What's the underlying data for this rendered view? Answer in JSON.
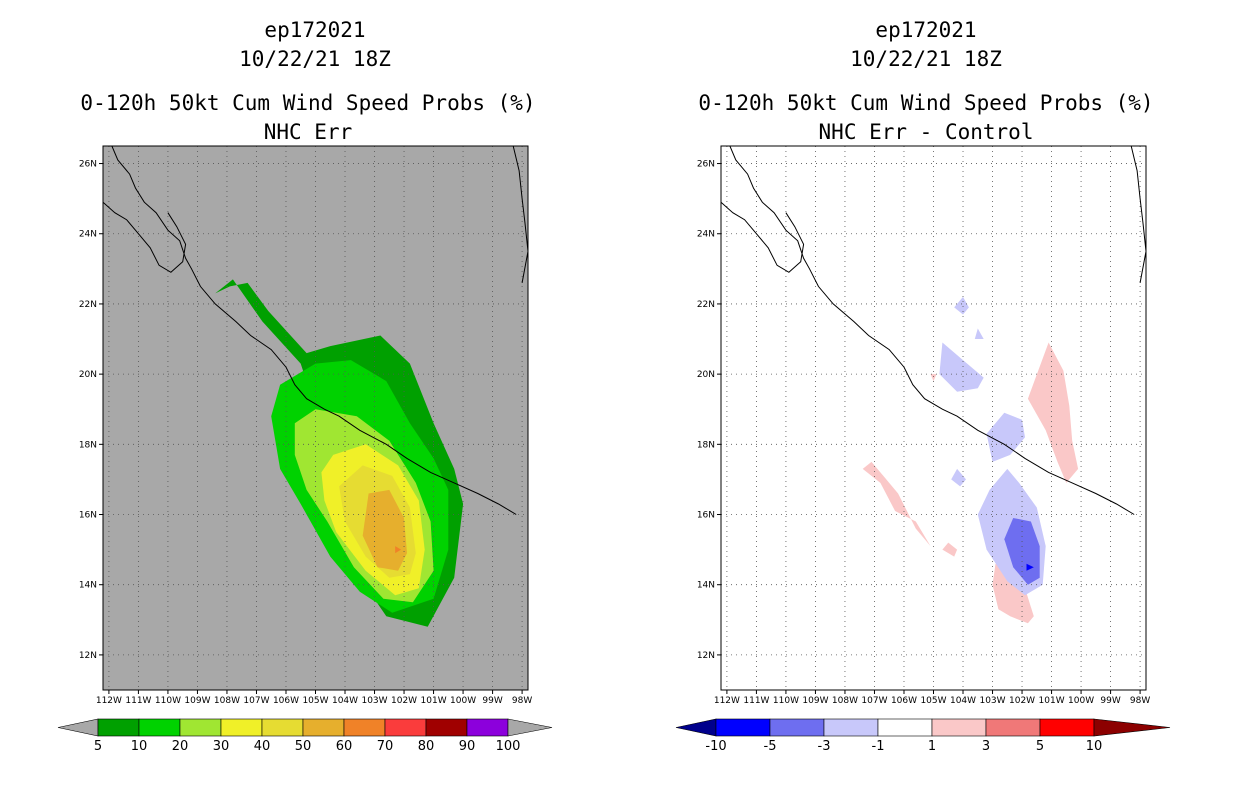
{
  "chart_data": [
    {
      "type": "contour-map",
      "storm_id": "ep172021",
      "date": "10/22/21 18Z",
      "title": "0-120h 50kt Cum Wind Speed Probs (%)",
      "subtitle": "NHC Err",
      "xlim": [
        -112.2,
        -97.8
      ],
      "ylim": [
        11,
        26.5
      ],
      "x_ticks": [
        -112,
        -111,
        -110,
        -109,
        -108,
        -107,
        -106,
        -105,
        -104,
        -103,
        -102,
        -101,
        -100,
        -99,
        -98
      ],
      "x_tick_labels": [
        "112W",
        "111W",
        "110W",
        "109W",
        "108W",
        "107W",
        "106W",
        "105W",
        "104W",
        "103W",
        "102W",
        "101W",
        "100W",
        "99W",
        "98W"
      ],
      "y_ticks": [
        12,
        14,
        16,
        18,
        20,
        22,
        24,
        26
      ],
      "y_tick_labels": [
        "12N",
        "14N",
        "16N",
        "18N",
        "20N",
        "22N",
        "24N",
        "26N"
      ],
      "background_color": "#a8a8a8",
      "colorbar": {
        "levels": [
          "5",
          "10",
          "20",
          "30",
          "40",
          "50",
          "60",
          "70",
          "80",
          "90",
          "100"
        ],
        "colors": [
          "#a8a8a8",
          "#00a000",
          "#00d200",
          "#a0e632",
          "#f0f028",
          "#e6dc32",
          "#e6af2d",
          "#f08228",
          "#fa3c3c",
          "#a00000",
          "#8c00dc",
          "#a8a8a8"
        ]
      },
      "contours": [
        {
          "level": 5,
          "color": "#00a000",
          "polygon": [
            [
              -108.4,
              22.3
            ],
            [
              -107.8,
              22.7
            ],
            [
              -106.8,
              21.5
            ],
            [
              -105.5,
              20.3
            ],
            [
              -104.8,
              18.5
            ],
            [
              -104.2,
              17.2
            ],
            [
              -103.9,
              16
            ],
            [
              -103.9,
              14.7
            ],
            [
              -102.6,
              13.1
            ],
            [
              -101.2,
              12.8
            ],
            [
              -100.3,
              14.2
            ],
            [
              -100,
              16.3
            ],
            [
              -100.3,
              17.3
            ],
            [
              -101,
              18.6
            ],
            [
              -101.8,
              20.3
            ],
            [
              -102.8,
              21.1
            ],
            [
              -104.5,
              20.8
            ],
            [
              -105.3,
              20.6
            ],
            [
              -106.6,
              21.8
            ],
            [
              -107.3,
              22.6
            ],
            [
              -107.9,
              22.5
            ]
          ]
        },
        {
          "level": 10,
          "color": "#00d200",
          "polygon": [
            [
              -106.5,
              18.8
            ],
            [
              -106.2,
              19.7
            ],
            [
              -105,
              20.3
            ],
            [
              -103.8,
              20.4
            ],
            [
              -102.6,
              19.8
            ],
            [
              -101.8,
              18.6
            ],
            [
              -101,
              17.6
            ],
            [
              -100.5,
              16.7
            ],
            [
              -100.5,
              15
            ],
            [
              -101,
              13.6
            ],
            [
              -102.4,
              13.2
            ],
            [
              -103.5,
              13.8
            ],
            [
              -104.5,
              14.8
            ],
            [
              -105.5,
              16.3
            ],
            [
              -106.2,
              17.3
            ]
          ]
        },
        {
          "level": 20,
          "color": "#a0e632",
          "polygon": [
            [
              -105.7,
              17.7
            ],
            [
              -105.7,
              18.6
            ],
            [
              -105,
              19
            ],
            [
              -103.6,
              18.8
            ],
            [
              -102.5,
              18.1
            ],
            [
              -101.6,
              16.9
            ],
            [
              -101.1,
              15.8
            ],
            [
              -101,
              14.4
            ],
            [
              -101.7,
              13.5
            ],
            [
              -102.7,
              13.6
            ],
            [
              -103.7,
              14.5
            ],
            [
              -104.6,
              15.8
            ],
            [
              -105.3,
              16.7
            ]
          ]
        },
        {
          "level": 30,
          "color": "#f0f028",
          "polygon": [
            [
              -104.8,
              17.2
            ],
            [
              -104.4,
              17.7
            ],
            [
              -103.3,
              18
            ],
            [
              -102.2,
              17.4
            ],
            [
              -101.5,
              16.4
            ],
            [
              -101.3,
              15
            ],
            [
              -101.5,
              13.9
            ],
            [
              -102.3,
              13.7
            ],
            [
              -103.3,
              14.4
            ],
            [
              -104.3,
              15.5
            ],
            [
              -104.7,
              16.4
            ]
          ]
        },
        {
          "level": 40,
          "color": "#e6dc32",
          "polygon": [
            [
              -104.2,
              16.8
            ],
            [
              -103.4,
              17.4
            ],
            [
              -102.4,
              17.1
            ],
            [
              -101.8,
              16.2
            ],
            [
              -101.6,
              14.9
            ],
            [
              -101.8,
              14.3
            ],
            [
              -102.5,
              14.2
            ],
            [
              -103.3,
              14.8
            ],
            [
              -104,
              15.8
            ]
          ]
        },
        {
          "level": 50,
          "color": "#e6af2d",
          "polygon": [
            [
              -103.2,
              16.6
            ],
            [
              -102.5,
              16.7
            ],
            [
              -102,
              15.9
            ],
            [
              -101.9,
              14.9
            ],
            [
              -102.2,
              14.4
            ],
            [
              -102.9,
              14.5
            ],
            [
              -103.4,
              15.4
            ]
          ]
        },
        {
          "level": 60,
          "color": "#f08228",
          "polygon": [
            [
              -102.3,
              15.1
            ],
            [
              -102.1,
              15.0
            ],
            [
              -102.3,
              14.9
            ]
          ]
        }
      ]
    },
    {
      "type": "contour-map",
      "storm_id": "ep172021",
      "date": "10/22/21 18Z",
      "title": "0-120h 50kt Cum Wind Speed Probs (%)",
      "subtitle": "NHC Err - Control",
      "xlim": [
        -112.2,
        -97.8
      ],
      "ylim": [
        11,
        26.5
      ],
      "x_ticks": [
        -112,
        -111,
        -110,
        -109,
        -108,
        -107,
        -106,
        -105,
        -104,
        -103,
        -102,
        -101,
        -100,
        -99,
        -98
      ],
      "x_tick_labels": [
        "112W",
        "111W",
        "110W",
        "109W",
        "108W",
        "107W",
        "106W",
        "105W",
        "104W",
        "103W",
        "102W",
        "101W",
        "100W",
        "99W",
        "98W"
      ],
      "y_ticks": [
        12,
        14,
        16,
        18,
        20,
        22,
        24,
        26
      ],
      "y_tick_labels": [
        "12N",
        "14N",
        "16N",
        "18N",
        "20N",
        "22N",
        "24N",
        "26N"
      ],
      "background_color": "#ffffff",
      "colorbar": {
        "levels": [
          "-10",
          "-5",
          "-3",
          "-1",
          "1",
          "3",
          "5",
          "10"
        ],
        "colors": [
          "#00008c",
          "#0000ff",
          "#6e6ef0",
          "#c8c8fa",
          "#ffffff",
          "#fac8c8",
          "#f07878",
          "#ff0000",
          "#8c0000"
        ]
      },
      "contours": [
        {
          "level": 1,
          "color": "#fac8c8",
          "polygon": [
            [
              -101.1,
              20.9
            ],
            [
              -100.6,
              20.1
            ],
            [
              -100.4,
              19.1
            ],
            [
              -100.3,
              18.1
            ],
            [
              -100.1,
              17.3
            ],
            [
              -100.5,
              16.9
            ],
            [
              -100.8,
              17.5
            ],
            [
              -101.2,
              18.4
            ],
            [
              -101.8,
              19.3
            ]
          ]
        },
        {
          "level": 1,
          "color": "#fac8c8",
          "polygon": [
            [
              -107.1,
              17.5
            ],
            [
              -106.6,
              17
            ],
            [
              -106.2,
              16.6
            ],
            [
              -105.6,
              15.6
            ],
            [
              -105.1,
              15.1
            ],
            [
              -105.6,
              15.8
            ],
            [
              -106.3,
              16.1
            ],
            [
              -106.8,
              16.9
            ],
            [
              -107.4,
              17.3
            ]
          ]
        },
        {
          "level": 1,
          "color": "#fac8c8",
          "polygon": [
            [
              -102.9,
              14.6
            ],
            [
              -102.2,
              14.3
            ],
            [
              -101.9,
              13.9
            ],
            [
              -101.6,
              13.1
            ],
            [
              -101.8,
              12.9
            ],
            [
              -102.4,
              13.1
            ],
            [
              -102.8,
              13.3
            ],
            [
              -103.0,
              14.0
            ]
          ]
        },
        {
          "level": 1,
          "color": "#fac8c8",
          "polygon": [
            [
              -104.5,
              15.2
            ],
            [
              -104.2,
              15.0
            ],
            [
              -104.3,
              14.8
            ],
            [
              -104.7,
              15.0
            ]
          ]
        },
        {
          "level": 1,
          "color": "#fac8c8",
          "polygon": [
            [
              -105.1,
              20.0
            ],
            [
              -104.9,
              20.0
            ],
            [
              -105.0,
              19.8
            ]
          ]
        },
        {
          "level": -1,
          "color": "#c8c8fa",
          "polygon": [
            [
              -103.1,
              16.7
            ],
            [
              -102.5,
              17.3
            ],
            [
              -102.1,
              16.9
            ],
            [
              -101.5,
              16.2
            ],
            [
              -101.2,
              15.1
            ],
            [
              -101.3,
              14.0
            ],
            [
              -101.9,
              13.7
            ],
            [
              -102.5,
              14.1
            ],
            [
              -103.2,
              15.0
            ],
            [
              -103.5,
              16.0
            ]
          ]
        },
        {
          "level": -1,
          "color": "#c8c8fa",
          "polygon": [
            [
              -103.2,
              18.3
            ],
            [
              -102.6,
              18.9
            ],
            [
              -102,
              18.7
            ],
            [
              -101.9,
              18.2
            ],
            [
              -102.4,
              17.7
            ],
            [
              -103.0,
              17.5
            ]
          ]
        },
        {
          "level": -1,
          "color": "#c8c8fa",
          "polygon": [
            [
              -104.7,
              20.9
            ],
            [
              -104.0,
              20.4
            ],
            [
              -103.3,
              19.9
            ],
            [
              -103.5,
              19.6
            ],
            [
              -104.2,
              19.5
            ],
            [
              -104.8,
              20.0
            ]
          ]
        },
        {
          "level": -1,
          "color": "#c8c8fa",
          "polygon": [
            [
              -104.0,
              22.2
            ],
            [
              -103.8,
              21.9
            ],
            [
              -104.0,
              21.7
            ],
            [
              -104.3,
              21.9
            ]
          ]
        },
        {
          "level": -1,
          "color": "#c8c8fa",
          "polygon": [
            [
              -103.5,
              21.3
            ],
            [
              -103.3,
              21.0
            ],
            [
              -103.6,
              21.0
            ]
          ]
        },
        {
          "level": -1,
          "color": "#c8c8fa",
          "polygon": [
            [
              -104.2,
              17.3
            ],
            [
              -103.9,
              17.0
            ],
            [
              -104.1,
              16.8
            ],
            [
              -104.4,
              17.0
            ]
          ]
        },
        {
          "level": -3,
          "color": "#6e6ef0",
          "polygon": [
            [
              -102.3,
              15.9
            ],
            [
              -101.7,
              15.8
            ],
            [
              -101.4,
              15.1
            ],
            [
              -101.4,
              14.2
            ],
            [
              -101.8,
              14.0
            ],
            [
              -102.3,
              14.5
            ],
            [
              -102.6,
              15.3
            ]
          ]
        },
        {
          "level": -5,
          "color": "#0000ff",
          "polygon": [
            [
              -101.85,
              14.6
            ],
            [
              -101.6,
              14.5
            ],
            [
              -101.85,
              14.4
            ]
          ]
        }
      ]
    }
  ]
}
